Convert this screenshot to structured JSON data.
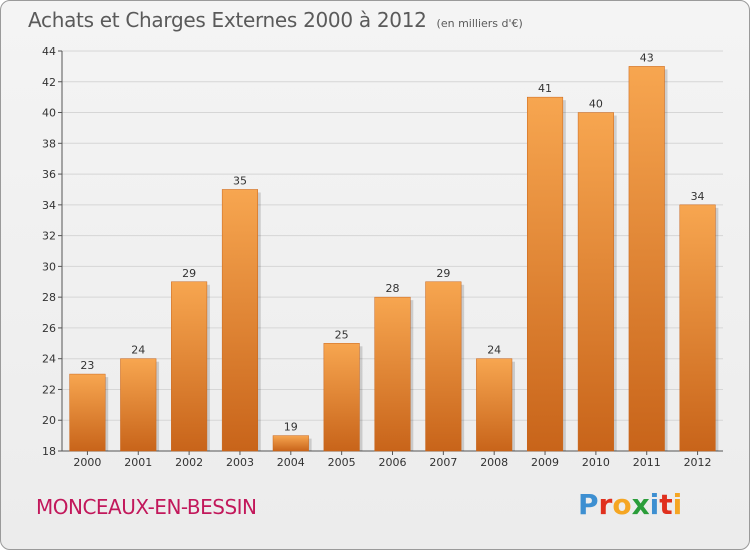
{
  "header": {
    "title": "Achats et Charges Externes 2000 à 2012",
    "unit": "(en milliers d'€)"
  },
  "footer": {
    "commune": "MONCEAUX-EN-BESSIN",
    "logo_letters": [
      "P",
      "r",
      "o",
      "x",
      "i",
      "t",
      "i"
    ],
    "logo_colors": [
      "#3d8fd1",
      "#e0301e",
      "#f5a623",
      "#2a9d3a",
      "#3d8fd1",
      "#e0301e",
      "#f5a623"
    ]
  },
  "colors": {
    "bar_light": "#f7a650",
    "bar_dark": "#c8641a",
    "grid": "#d6d6d6"
  },
  "chart_data": {
    "type": "bar",
    "title": "Achats et Charges Externes 2000 à 2012",
    "categories": [
      "2000",
      "2001",
      "2002",
      "2003",
      "2004",
      "2005",
      "2006",
      "2007",
      "2008",
      "2009",
      "2010",
      "2011",
      "2012"
    ],
    "values": [
      23,
      24,
      29,
      35,
      19,
      25,
      28,
      29,
      24,
      41,
      40,
      43,
      34
    ],
    "ylim": [
      18,
      44
    ],
    "yticks": [
      18,
      20,
      22,
      24,
      26,
      28,
      30,
      32,
      34,
      36,
      38,
      40,
      42,
      44
    ],
    "grid": true
  }
}
